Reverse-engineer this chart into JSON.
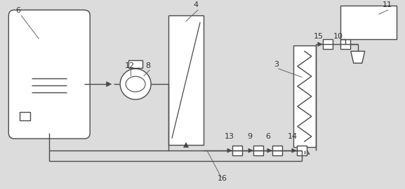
{
  "bg_color": "#dcdcdc",
  "line_color": "#4a4a4a",
  "lw": 1.0,
  "fig_w": 5.77,
  "fig_h": 2.7
}
